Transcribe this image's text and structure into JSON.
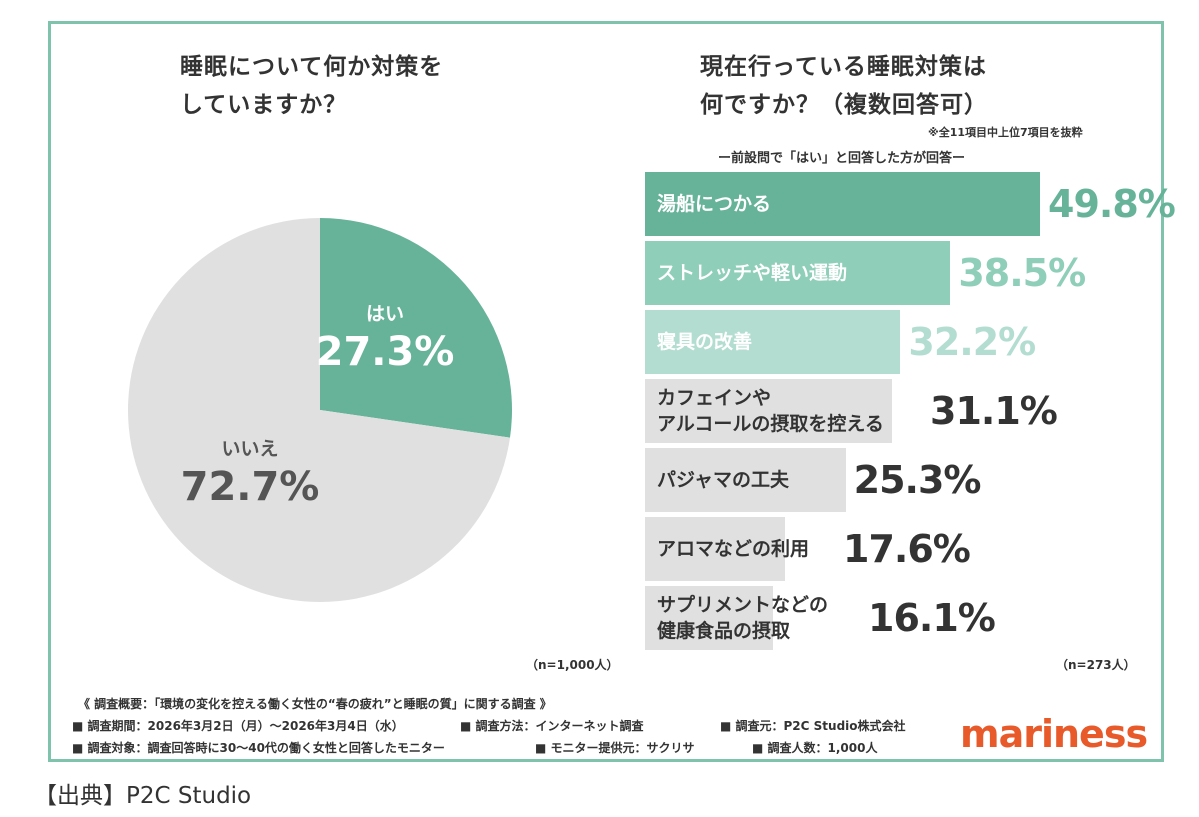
{
  "chart_data": [
    {
      "type": "pie",
      "title_lines": [
        "睡眠について何か対策を",
        "していますか？"
      ],
      "slices": [
        {
          "label": "はい",
          "value": 27.3,
          "display": "27.3%",
          "color": "#67b39a"
        },
        {
          "label": "いいえ",
          "value": 72.7,
          "display": "72.7%",
          "color": "#e0e0e0"
        }
      ],
      "n_label": "（n=1,000人）"
    },
    {
      "type": "bar",
      "orientation": "horizontal",
      "title_lines": [
        "現在行っている睡眠対策は",
        "何ですか？（複数回答可）"
      ],
      "note": "※全11項目中上位7項目を抜粋",
      "subtitle": "ー前設問で「はい」と回答した方が回答ー",
      "unit": "%",
      "categories": [
        [
          "湯船につかる"
        ],
        [
          "ストレッチや軽い運動"
        ],
        [
          "寝具の改善"
        ],
        [
          "カフェインや",
          "アルコールの摂取を控える"
        ],
        [
          "パジャマの工夫"
        ],
        [
          "アロマなどの利用"
        ],
        [
          "サプリメントなどの",
          "健康食品の摂取"
        ]
      ],
      "values": [
        49.8,
        38.5,
        32.2,
        31.1,
        25.3,
        17.6,
        16.1
      ],
      "value_labels": [
        "49.8%",
        "38.5%",
        "32.2%",
        "31.1%",
        "25.3%",
        "17.6%",
        "16.1%"
      ],
      "colors": [
        "#67b39a",
        "#8fceb9",
        "#b3ddd0",
        "#e0e0e0",
        "#e0e0e0",
        "#e0e0e0",
        "#e0e0e0"
      ],
      "text_colors": [
        "#ffffff",
        "#ffffff",
        "#ffffff",
        "#333333",
        "#333333",
        "#333333",
        "#333333"
      ],
      "value_colors": [
        "#67b39a",
        "#8fceb9",
        "#b3ddd0",
        "#333333",
        "#333333",
        "#333333",
        "#333333"
      ],
      "n_label": "（n=273人）"
    }
  ],
  "footer": {
    "overview": "《 調査概要：「環境の変化を控える働く女性の“春の疲れ”と睡眠の質」に関する調査 》",
    "period": "■ 調査期間：2026年3月2日（月）〜2026年3月4日（水）",
    "method": "■ 調査方法：インターネット調査",
    "organizer": "■ 調査元：P2C Studio株式会社",
    "target": "■ 調査対象：調査回答時に30〜40代の働く女性と回答したモニター",
    "provider": "■ モニター提供元：サクリサ",
    "count": "■ 調査人数：1,000人"
  },
  "logo": "mariness",
  "source": "【出典】P2C Studio",
  "colors": {
    "frame": "#7fc3ad",
    "accent": "#67b39a",
    "logo": "#e85a2a"
  }
}
